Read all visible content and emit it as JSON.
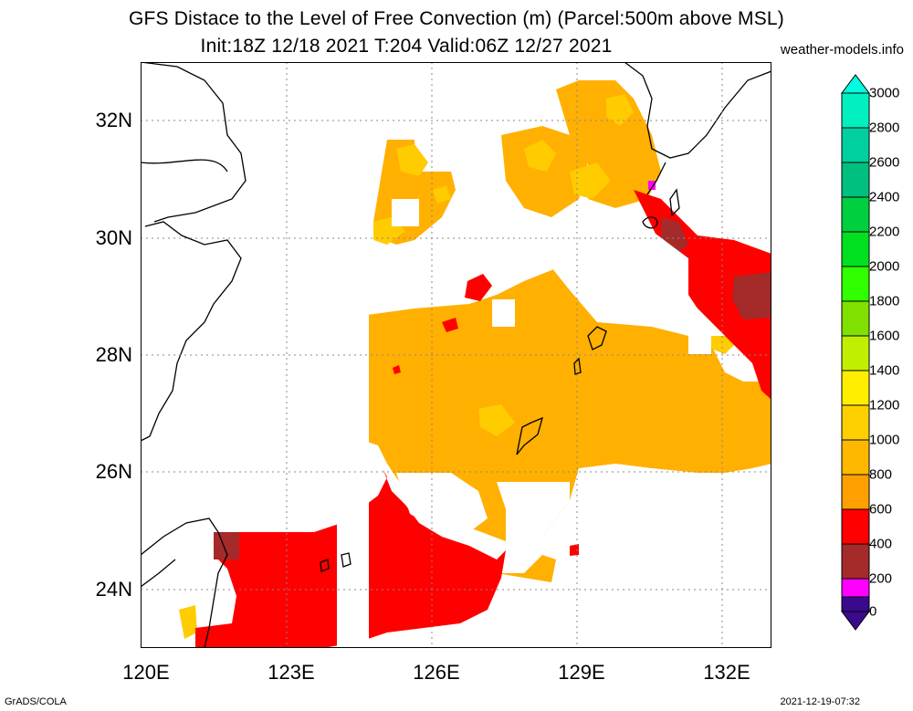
{
  "header": {
    "title_line1": "GFS Distace to the Level of Free Convection (m) (Parcel:500m above MSL)",
    "title_line2": "Init:18Z 12/18 2021 T:204 Valid:06Z 12/27 2021",
    "site": "weather-models.info"
  },
  "footer": {
    "left": "GrADS/COLA",
    "right": "2021-12-19-07:32"
  },
  "axes": {
    "x_ticks": [
      "120E",
      "123E",
      "126E",
      "129E",
      "132E"
    ],
    "y_ticks": [
      "32N",
      "30N",
      "28N",
      "26N",
      "24N"
    ],
    "lon_range": [
      120,
      133
    ],
    "lat_range": [
      23,
      33
    ]
  },
  "colorbar": {
    "labels": [
      "3000",
      "2800",
      "2600",
      "2400",
      "2200",
      "2000",
      "1800",
      "1600",
      "1400",
      "1200",
      "1000",
      "800",
      "600",
      "400",
      "200",
      "0"
    ],
    "colors": {
      "purple": "#3a0a8c",
      "magenta": "#ff00ff",
      "dark_red": "#a52a2a",
      "red": "#ff0000",
      "orange": "#ffa000",
      "light_orange": "#ffb800",
      "yellow_orange": "#ffd000",
      "yellow": "#ffee00",
      "lime": "#c0ff00",
      "green": "#00ff00",
      "teal": "#00e0a0",
      "cyan": "#00ffe0"
    }
  }
}
